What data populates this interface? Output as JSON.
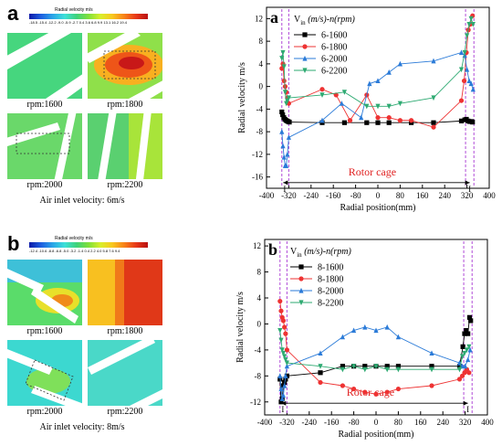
{
  "left_panels": [
    {
      "letter": "a",
      "colorbar_title": "Radial velocity   m/s",
      "colorbar_ticks": "-18.5 -15.4 -12.2 -9.0 -5.9 -2.7 0.4 3.6 6.8 9.9 13.1 16.2 19.4",
      "tiles": [
        {
          "label": "rpm:1600",
          "field": "green"
        },
        {
          "label": "rpm:1800",
          "field": "redhot"
        },
        {
          "label": "rpm:2000",
          "field": "green"
        },
        {
          "label": "rpm:2200",
          "field": "greenmix"
        }
      ],
      "caption": "Air inlet velocity: 6m/s"
    },
    {
      "letter": "b",
      "colorbar_title": "Radial velocity   m/s",
      "colorbar_ticks": "-12.4 -10.6 -8.8 -6.8 -5.0 -3.2 -1.4 0.4 2.2 4.0 5.8 7.6 9.4",
      "tiles": [
        {
          "label": "rpm:1600",
          "field": "mixed"
        },
        {
          "label": "rpm:1800",
          "field": "redhot"
        },
        {
          "label": "rpm:2000",
          "field": "cyan"
        },
        {
          "label": "rpm:2200",
          "field": "cyan"
        }
      ],
      "caption": "Air inlet velocity: 8m/s"
    }
  ],
  "chart_data": [
    {
      "type": "line",
      "panel": "a",
      "ylabel": "Radial velocity m/s",
      "xlabel": "Radial position(mm)",
      "xlim": [
        -400,
        400
      ],
      "ylim": [
        -18,
        14
      ],
      "xticks": [
        -400,
        -320,
        -240,
        -160,
        -80,
        0,
        80,
        160,
        240,
        320,
        400
      ],
      "yticks": [
        -16,
        -12,
        -8,
        -4,
        0,
        4,
        8,
        12
      ],
      "legend_title_prefix": "V",
      "legend_title_sub": "in",
      "legend_title_rest": " (m/s)-n(rpm)",
      "region_label": "I",
      "rotor_label": "Rotor cage",
      "series": [
        {
          "name": "6-1600",
          "color": "#000000",
          "marker": "square",
          "x": [
            -345,
            -342,
            -338,
            -334,
            -330,
            -326,
            -322,
            -318,
            -200,
            -120,
            -40,
            0,
            40,
            120,
            200,
            300,
            312,
            318,
            324,
            330,
            336,
            340
          ],
          "y": [
            -4.5,
            -5,
            -5.5,
            -5.8,
            -6,
            -6.1,
            -6.2,
            -6.3,
            -6.4,
            -6.4,
            -6.4,
            -6.4,
            -6.4,
            -6.4,
            -6.4,
            -6.1,
            -5.9,
            -5.8,
            -6.1,
            -6.2,
            -6.2,
            -6.3
          ]
        },
        {
          "name": "6-1800",
          "color": "#ee3333",
          "marker": "circle",
          "x": [
            -345,
            -341,
            -337,
            -333,
            -329,
            -325,
            -320,
            -200,
            -150,
            -100,
            -40,
            0,
            40,
            80,
            120,
            200,
            300,
            310,
            318,
            325,
            332,
            340
          ],
          "y": [
            3.2,
            4,
            1,
            0,
            -1,
            -2,
            -3,
            -0.5,
            -1.5,
            -6,
            -1.5,
            -5.5,
            -5.5,
            -6,
            -6,
            -7.2,
            -2.5,
            1,
            6,
            10,
            11,
            12.5
          ]
        },
        {
          "name": "6-2000",
          "color": "#2b7bd8",
          "marker": "triangle",
          "x": [
            -345,
            -341,
            -337,
            -333,
            -329,
            -325,
            -320,
            -200,
            -130,
            -60,
            -30,
            0,
            40,
            80,
            200,
            300,
            312,
            320,
            328,
            335,
            342
          ],
          "y": [
            -8,
            -10.5,
            -12.5,
            -14,
            -14,
            -12,
            -9,
            -6,
            -3,
            -5.5,
            0.5,
            1,
            2.5,
            4,
            4.5,
            6,
            5.5,
            3,
            1,
            0.5,
            -0.5
          ]
        },
        {
          "name": "6-2200",
          "color": "#2eaa72",
          "marker": "triangle-down",
          "x": [
            -345,
            -341,
            -337,
            -333,
            -329,
            -325,
            -320,
            -200,
            -120,
            -40,
            0,
            40,
            80,
            200,
            300,
            312,
            320,
            328,
            335,
            342
          ],
          "y": [
            5,
            6,
            3.5,
            -1,
            -3,
            -2.5,
            -2,
            -1.5,
            -1,
            -3.5,
            -3.5,
            -3.5,
            -3,
            -2,
            3,
            6,
            9,
            11,
            12,
            11
          ]
        }
      ]
    },
    {
      "type": "line",
      "panel": "b",
      "ylabel": "Radial velocity m/s",
      "xlabel": "Radial position(mm)",
      "xlim": [
        -400,
        400
      ],
      "ylim": [
        -14,
        13
      ],
      "xticks": [
        -400,
        -320,
        -240,
        -160,
        -80,
        0,
        80,
        160,
        240,
        320,
        400
      ],
      "yticks": [
        -12,
        -8,
        -4,
        0,
        4,
        8,
        12
      ],
      "legend_title_prefix": "V",
      "legend_title_sub": "in",
      "legend_title_rest": " (m/s)-n(rpm)",
      "region_label": "I",
      "rotor_label": "Rotor cage",
      "series": [
        {
          "name": "8-1600",
          "color": "#000000",
          "marker": "square",
          "x": [
            -345,
            -341,
            -337,
            -333,
            -329,
            -325,
            -320,
            -200,
            -120,
            -80,
            -40,
            0,
            40,
            80,
            200,
            300,
            312,
            318,
            324,
            330,
            336,
            340
          ],
          "y": [
            -8.5,
            -12,
            -11.5,
            -9.5,
            -9,
            -8.5,
            -8,
            -7.5,
            -6.5,
            -6.5,
            -6.5,
            -6.5,
            -6.5,
            -6.5,
            -6.5,
            -6.5,
            -3.5,
            -1.5,
            -1,
            -1.5,
            1,
            0.5
          ]
        },
        {
          "name": "8-1800",
          "color": "#ee3333",
          "marker": "circle",
          "x": [
            -345,
            -341,
            -337,
            -333,
            -329,
            -325,
            -320,
            -200,
            -120,
            -80,
            -40,
            0,
            40,
            80,
            200,
            300,
            310,
            318,
            326,
            334
          ],
          "y": [
            3.5,
            2,
            1,
            0.5,
            -0.5,
            -1.5,
            -4,
            -9,
            -9.5,
            -10,
            -10.5,
            -10.8,
            -10.5,
            -10,
            -9.5,
            -8.5,
            -8,
            -7.5,
            -7,
            -7.5
          ]
        },
        {
          "name": "8-2000",
          "color": "#2b7bd8",
          "marker": "triangle",
          "x": [
            -345,
            -341,
            -337,
            -333,
            -329,
            -325,
            -320,
            -200,
            -120,
            -80,
            -40,
            0,
            40,
            80,
            200,
            300,
            310,
            320,
            330,
            338
          ],
          "y": [
            -8,
            -10,
            -11.5,
            -11,
            -9.5,
            -8,
            -6.5,
            -4.5,
            -2,
            -1,
            -0.5,
            -1,
            -0.5,
            -2,
            -4.5,
            -6,
            -6.5,
            -6.5,
            -5.5,
            -4
          ]
        },
        {
          "name": "8-2200",
          "color": "#2eaa72",
          "marker": "triangle-down",
          "x": [
            -345,
            -341,
            -337,
            -333,
            -329,
            -325,
            -320,
            -200,
            -120,
            -80,
            -40,
            0,
            40,
            80,
            200,
            300,
            310,
            318,
            326,
            334
          ],
          "y": [
            -1,
            -2.5,
            -4,
            -4.5,
            -5,
            -5.5,
            -6,
            -6.5,
            -7,
            -6.5,
            -7,
            -6.5,
            -7,
            -7,
            -7,
            -7,
            -5,
            -4.5,
            -4,
            -3.5
          ]
        }
      ]
    }
  ]
}
